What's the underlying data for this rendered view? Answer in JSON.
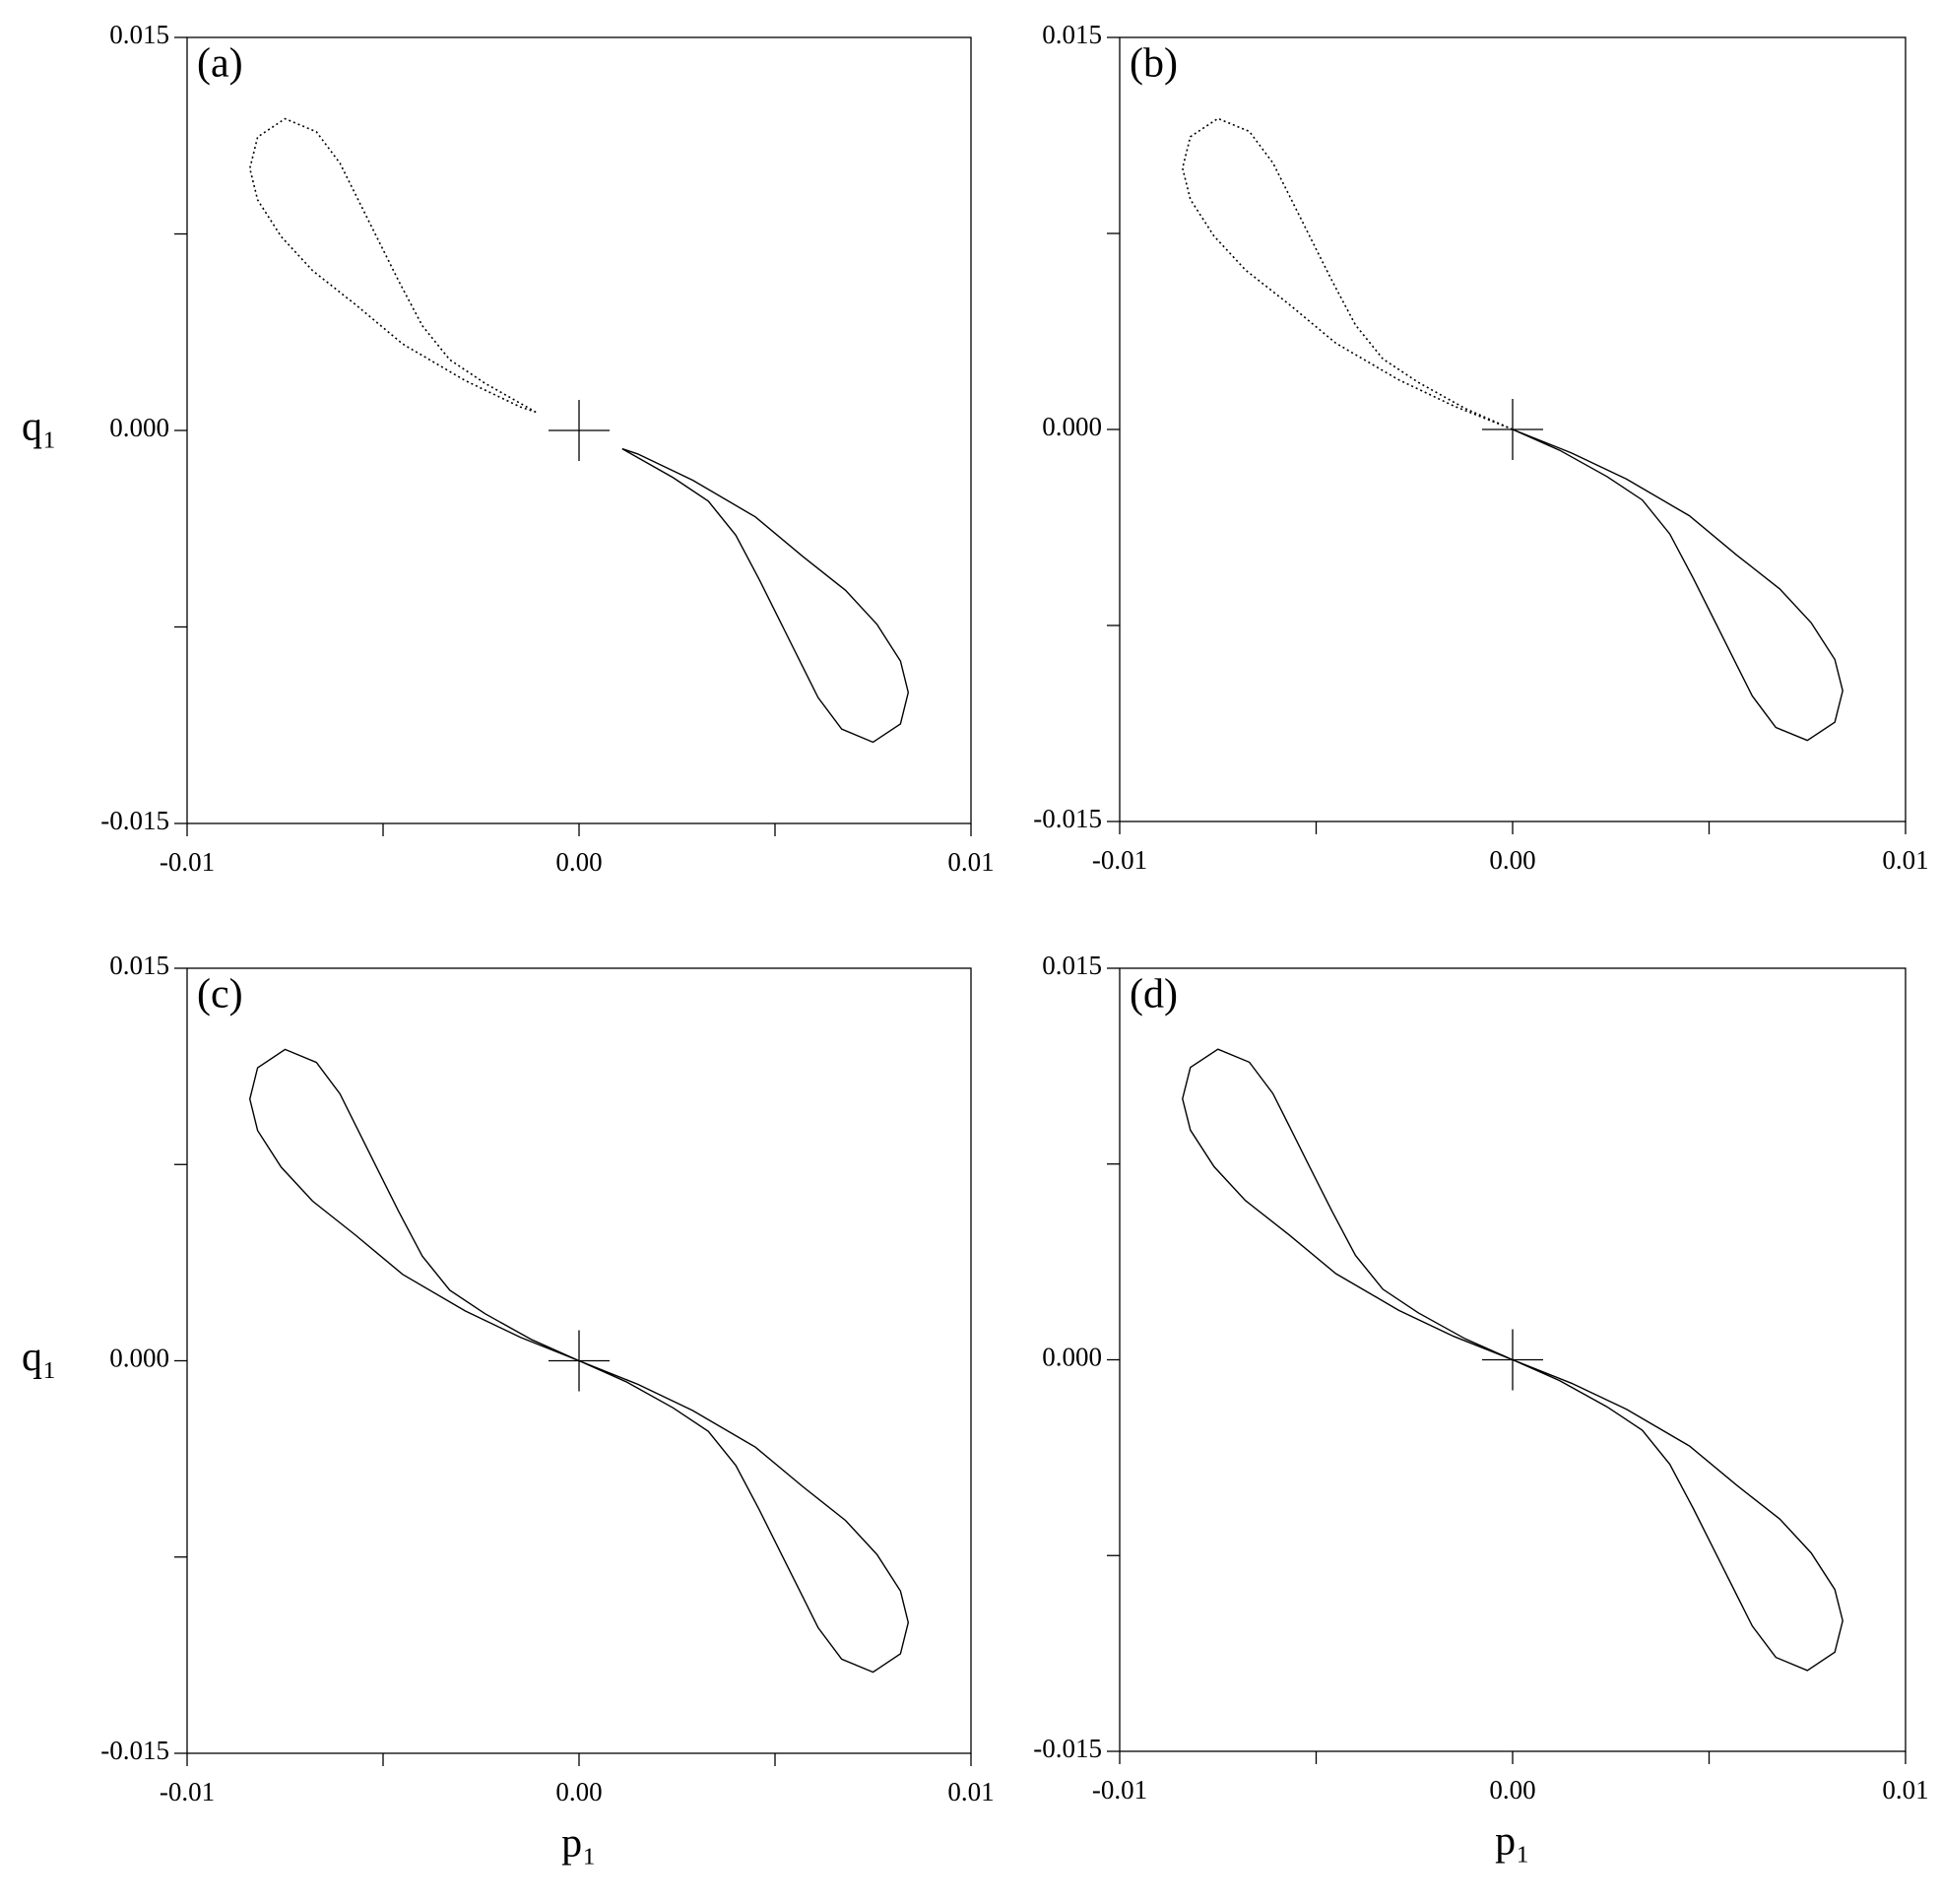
{
  "chart_data": [
    {
      "type": "line",
      "panel_label": "(a)",
      "ylabel": "q₁",
      "xlim": [
        -0.01,
        0.01
      ],
      "ylim": [
        -0.015,
        0.015
      ],
      "xticks": [
        -0.01,
        {
          "value": 0,
          "label": "0.00"
        },
        0.01
      ],
      "xminorticks": [
        -0.005,
        0.005
      ],
      "yticks": [
        -0.015,
        {
          "value": 0,
          "label": "0.000"
        },
        0.015
      ],
      "yminorticks": [
        -0.0075,
        0.0075
      ],
      "origin_marker": [
        0,
        0
      ],
      "series": [
        {
          "color": "#000000",
          "dash": "dotted",
          "x": [
            -0.0011,
            -0.0015,
            -0.0029,
            -0.0045,
            -0.0057,
            -0.0068,
            -0.0076,
            -0.0082,
            -0.0084,
            -0.0082,
            -0.0075,
            -0.0067,
            -0.0061,
            -0.0057,
            -0.0052,
            -0.0046,
            -0.004,
            -0.0033,
            -0.0024,
            -0.0011
          ],
          "values": [
            0.0007,
            0.0009,
            0.0019,
            0.0033,
            0.0048,
            0.0061,
            0.0074,
            0.0088,
            0.01,
            0.0112,
            0.0119,
            0.0114,
            0.0102,
            0.009,
            0.0075,
            0.0057,
            0.004,
            0.0027,
            0.0018,
            0.0007
          ]
        },
        {
          "color": "#000000",
          "dash": "solid",
          "x": [
            0.0011,
            0.0015,
            0.0029,
            0.0045,
            0.0057,
            0.0068,
            0.0076,
            0.0082,
            0.0084,
            0.0082,
            0.0075,
            0.0067,
            0.0061,
            0.0057,
            0.0052,
            0.0046,
            0.004,
            0.0033,
            0.0024,
            0.0011
          ],
          "values": [
            -0.0007,
            -0.0009,
            -0.0019,
            -0.0033,
            -0.0048,
            -0.0061,
            -0.0074,
            -0.0088,
            -0.01,
            -0.0112,
            -0.0119,
            -0.0114,
            -0.0102,
            -0.009,
            -0.0075,
            -0.0057,
            -0.004,
            -0.0027,
            -0.0018,
            -0.0007
          ]
        }
      ]
    },
    {
      "type": "line",
      "panel_label": "(b)",
      "xlim": [
        -0.01,
        0.01
      ],
      "ylim": [
        -0.015,
        0.015
      ],
      "xticks": [
        -0.01,
        {
          "value": 0,
          "label": "0.00"
        },
        0.01
      ],
      "xminorticks": [
        -0.005,
        0.005
      ],
      "yticks": [
        -0.015,
        {
          "value": 0,
          "label": "0.000"
        },
        0.015
      ],
      "yminorticks": [
        -0.0075,
        0.0075
      ],
      "origin_marker": [
        0,
        0
      ],
      "series": [
        {
          "color": "#000000",
          "dash": "dotted",
          "x": [
            0,
            -0.0015,
            -0.0029,
            -0.0045,
            -0.0057,
            -0.0068,
            -0.0076,
            -0.0082,
            -0.0084,
            -0.0082,
            -0.0075,
            -0.0067,
            -0.0061,
            -0.0057,
            -0.0052,
            -0.0046,
            -0.004,
            -0.0033,
            -0.0024,
            -0.0012,
            0
          ],
          "values": [
            0,
            0.0009,
            0.0019,
            0.0033,
            0.0048,
            0.0061,
            0.0074,
            0.0088,
            0.01,
            0.0112,
            0.0119,
            0.0114,
            0.0102,
            0.009,
            0.0075,
            0.0057,
            0.004,
            0.0027,
            0.0018,
            0.0008,
            0
          ]
        },
        {
          "color": "#000000",
          "dash": "solid",
          "x": [
            0,
            0.0015,
            0.0029,
            0.0045,
            0.0057,
            0.0068,
            0.0076,
            0.0082,
            0.0084,
            0.0082,
            0.0075,
            0.0067,
            0.0061,
            0.0057,
            0.0052,
            0.0046,
            0.004,
            0.0033,
            0.0024,
            0.0012,
            0
          ],
          "values": [
            0,
            -0.0009,
            -0.0019,
            -0.0033,
            -0.0048,
            -0.0061,
            -0.0074,
            -0.0088,
            -0.01,
            -0.0112,
            -0.0119,
            -0.0114,
            -0.0102,
            -0.009,
            -0.0075,
            -0.0057,
            -0.004,
            -0.0027,
            -0.0018,
            -0.0008,
            0
          ]
        }
      ]
    },
    {
      "type": "line",
      "panel_label": "(c)",
      "xlabel": "p₁",
      "ylabel": "q₁",
      "xlim": [
        -0.01,
        0.01
      ],
      "ylim": [
        -0.015,
        0.015
      ],
      "xticks": [
        -0.01,
        {
          "value": 0,
          "label": "0.00"
        },
        0.01
      ],
      "xminorticks": [
        -0.005,
        0.005
      ],
      "yticks": [
        -0.015,
        {
          "value": 0,
          "label": "0.000"
        },
        0.015
      ],
      "yminorticks": [
        -0.0075,
        0.0075
      ],
      "origin_marker": [
        0,
        0
      ],
      "series": [
        {
          "color": "#000000",
          "dash": "solid",
          "x": [
            0,
            -0.0015,
            -0.0029,
            -0.0045,
            -0.0057,
            -0.0068,
            -0.0076,
            -0.0082,
            -0.0084,
            -0.0082,
            -0.0075,
            -0.0067,
            -0.0061,
            -0.0057,
            -0.0052,
            -0.0046,
            -0.004,
            -0.0033,
            -0.0024,
            -0.0012,
            0
          ],
          "values": [
            0,
            0.0009,
            0.0019,
            0.0033,
            0.0048,
            0.0061,
            0.0074,
            0.0088,
            0.01,
            0.0112,
            0.0119,
            0.0114,
            0.0102,
            0.009,
            0.0075,
            0.0057,
            0.004,
            0.0027,
            0.0018,
            0.0008,
            0
          ]
        },
        {
          "color": "#000000",
          "dash": "solid",
          "x": [
            0,
            0.0015,
            0.0029,
            0.0045,
            0.0057,
            0.0068,
            0.0076,
            0.0082,
            0.0084,
            0.0082,
            0.0075,
            0.0067,
            0.0061,
            0.0057,
            0.0052,
            0.0046,
            0.004,
            0.0033,
            0.0024,
            0.0012,
            0
          ],
          "values": [
            0,
            -0.0009,
            -0.0019,
            -0.0033,
            -0.0048,
            -0.0061,
            -0.0074,
            -0.0088,
            -0.01,
            -0.0112,
            -0.0119,
            -0.0114,
            -0.0102,
            -0.009,
            -0.0075,
            -0.0057,
            -0.004,
            -0.0027,
            -0.0018,
            -0.0008,
            0
          ]
        }
      ]
    },
    {
      "type": "line",
      "panel_label": "(d)",
      "xlabel": "p₁",
      "xlim": [
        -0.01,
        0.01
      ],
      "ylim": [
        -0.015,
        0.015
      ],
      "xticks": [
        -0.01,
        {
          "value": 0,
          "label": "0.00"
        },
        0.01
      ],
      "xminorticks": [
        -0.005,
        0.005
      ],
      "yticks": [
        -0.015,
        {
          "value": 0,
          "label": "0.000"
        },
        0.015
      ],
      "yminorticks": [
        -0.0075,
        0.0075
      ],
      "origin_marker": [
        0,
        0
      ],
      "series": [
        {
          "color": "#000000",
          "dash": "solid",
          "x": [
            0,
            -0.0015,
            -0.0029,
            -0.0045,
            -0.0057,
            -0.0068,
            -0.0076,
            -0.0082,
            -0.0084,
            -0.0082,
            -0.0075,
            -0.0067,
            -0.0061,
            -0.0057,
            -0.0052,
            -0.0046,
            -0.004,
            -0.0033,
            -0.0024,
            -0.0012,
            0
          ],
          "values": [
            0,
            0.0009,
            0.0019,
            0.0033,
            0.0048,
            0.0061,
            0.0074,
            0.0088,
            0.01,
            0.0112,
            0.0119,
            0.0114,
            0.0102,
            0.009,
            0.0075,
            0.0057,
            0.004,
            0.0027,
            0.0018,
            0.0008,
            0
          ]
        },
        {
          "color": "#000000",
          "dash": "solid",
          "x": [
            0,
            0.0015,
            0.0029,
            0.0045,
            0.0057,
            0.0068,
            0.0076,
            0.0082,
            0.0084,
            0.0082,
            0.0075,
            0.0067,
            0.0061,
            0.0057,
            0.0052,
            0.0046,
            0.004,
            0.0033,
            0.0024,
            0.0012,
            0
          ],
          "values": [
            0,
            -0.0009,
            -0.0019,
            -0.0033,
            -0.0048,
            -0.0061,
            -0.0074,
            -0.0088,
            -0.01,
            -0.0112,
            -0.0119,
            -0.0114,
            -0.0102,
            -0.009,
            -0.0075,
            -0.0057,
            -0.004,
            -0.0027,
            -0.0018,
            -0.0008,
            0
          ]
        }
      ]
    }
  ]
}
